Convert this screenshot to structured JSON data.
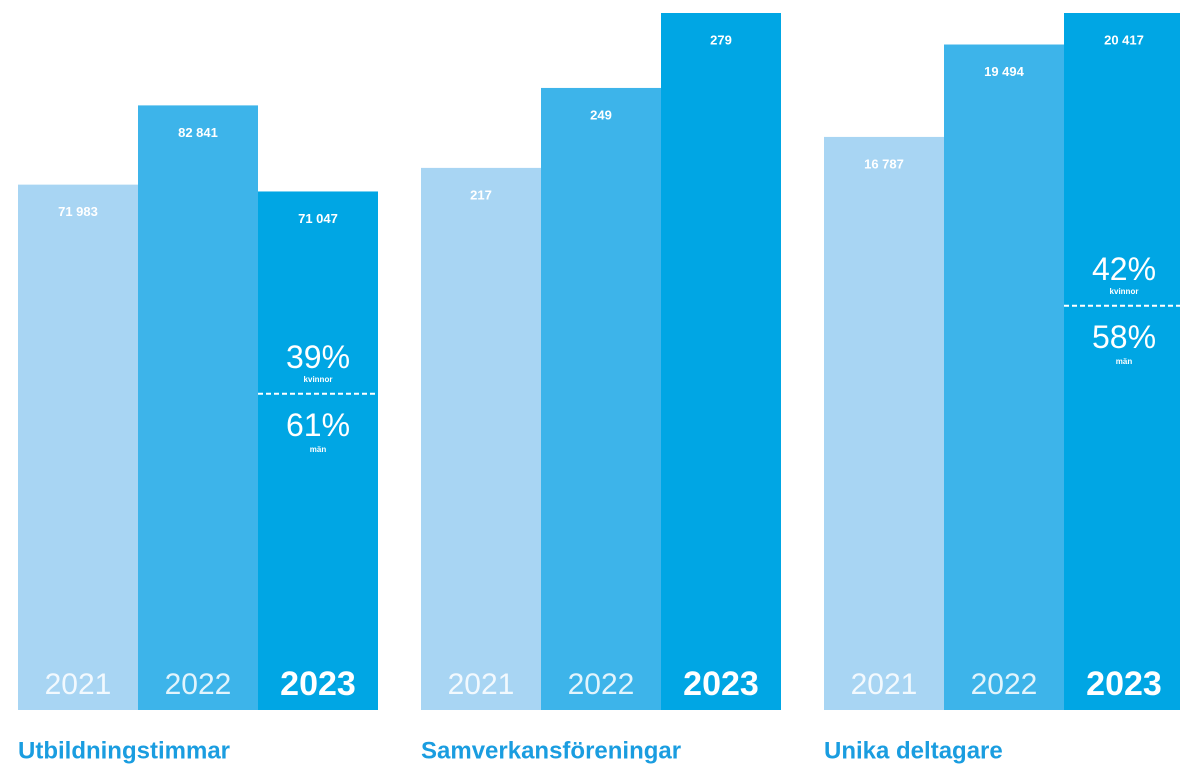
{
  "chart_data": [
    {
      "type": "bar",
      "title": "Utbildningstimmar",
      "categories": [
        "2021",
        "2022",
        "2023"
      ],
      "values": [
        71983,
        82841,
        71047
      ],
      "value_labels": [
        "71 983",
        "82 841",
        "71 047"
      ],
      "colors": [
        "#a8d5f3",
        "#3db4ea",
        "#00a6e4"
      ],
      "ylim": [
        0,
        95500
      ],
      "split": [
        {
          "value": 39,
          "label": "39%",
          "caption": "kvinnor"
        },
        {
          "value": 61,
          "label": "61%",
          "caption": "män"
        }
      ]
    },
    {
      "type": "bar",
      "title": "Samverkansföreningar",
      "categories": [
        "2021",
        "2022",
        "2023"
      ],
      "values": [
        217,
        249,
        279
      ],
      "colors": [
        "#a8d5f3",
        "#3db4ea",
        "#00a6e4"
      ],
      "ylim": [
        0,
        279
      ]
    },
    {
      "type": "bar",
      "title": "Unika deltagare",
      "categories": [
        "2021",
        "2022",
        "2023"
      ],
      "values": [
        16787,
        19494,
        20417
      ],
      "value_labels": [
        "16 787",
        "19 494",
        "20 417"
      ],
      "colors": [
        "#a8d5f3",
        "#3db4ea",
        "#00a6e4"
      ],
      "ylim": [
        0,
        20417
      ],
      "split": [
        {
          "value": 42,
          "label": "42%",
          "caption": "kvinnor"
        },
        {
          "value": 58,
          "label": "58%",
          "caption": "män"
        }
      ]
    }
  ]
}
